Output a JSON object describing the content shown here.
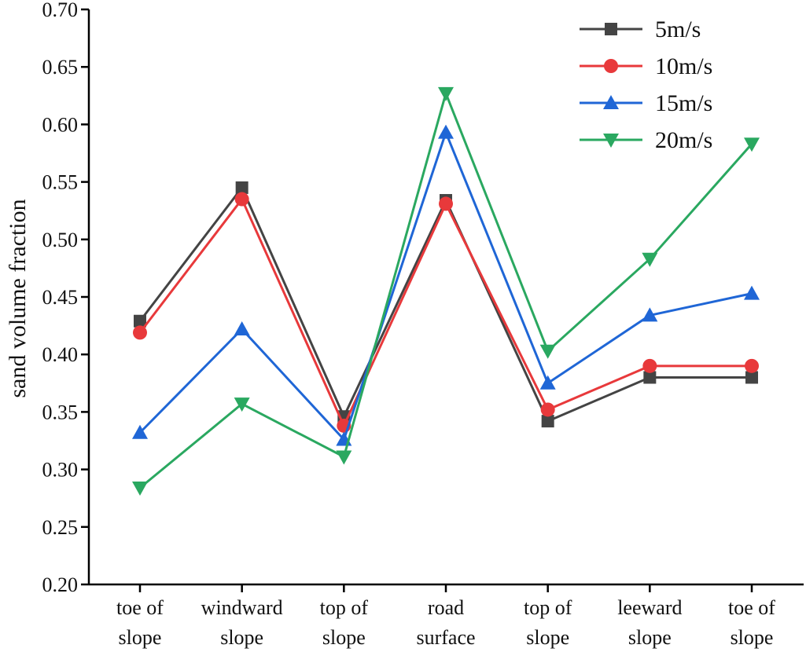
{
  "chart_data": {
    "type": "line",
    "title": "",
    "xlabel": "",
    "ylabel": "sand volume fraction",
    "ylim": [
      0.2,
      0.7
    ],
    "yticks": [
      "0.20",
      "0.25",
      "0.30",
      "0.35",
      "0.40",
      "0.45",
      "0.50",
      "0.55",
      "0.60",
      "0.65",
      "0.70"
    ],
    "categories": [
      [
        "toe of",
        "slope"
      ],
      [
        "windward",
        "slope"
      ],
      [
        "top of",
        "slope"
      ],
      [
        "road",
        "surface"
      ],
      [
        "top of",
        "slope"
      ],
      [
        "leeward",
        "slope"
      ],
      [
        "toe of",
        "slope"
      ]
    ],
    "legend_position": "top-right",
    "grid": false,
    "series": [
      {
        "name": "5m/s",
        "color": "#444444",
        "marker": "square",
        "values": [
          0.429,
          0.545,
          0.346,
          0.534,
          0.342,
          0.38,
          0.38
        ]
      },
      {
        "name": "10m/s",
        "color": "#e8393b",
        "marker": "circle",
        "values": [
          0.419,
          0.535,
          0.338,
          0.531,
          0.352,
          0.39,
          0.39
        ]
      },
      {
        "name": "15m/s",
        "color": "#1f66d6",
        "marker": "triangle-up",
        "values": [
          0.332,
          0.422,
          0.326,
          0.593,
          0.375,
          0.434,
          0.453
        ]
      },
      {
        "name": "20m/s",
        "color": "#2aa860",
        "marker": "triangle-down",
        "values": [
          0.284,
          0.357,
          0.311,
          0.627,
          0.403,
          0.483,
          0.583
        ]
      }
    ]
  }
}
